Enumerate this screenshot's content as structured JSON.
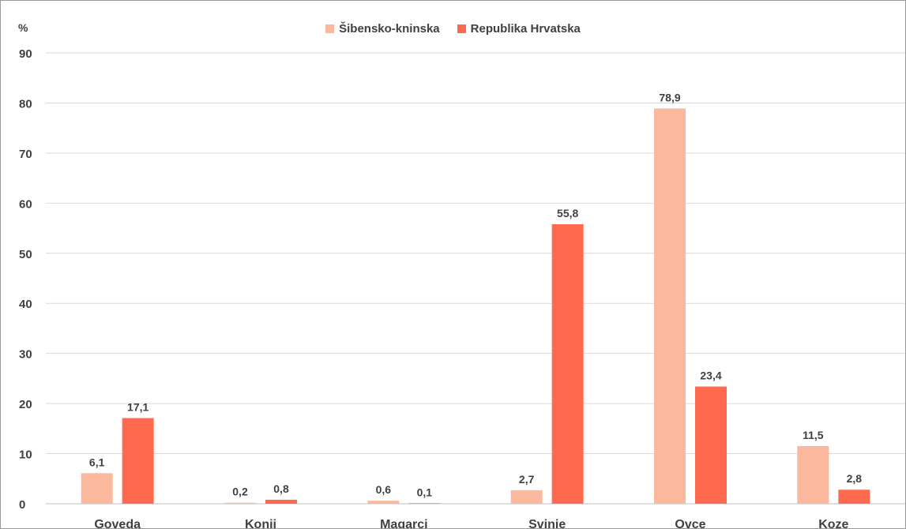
{
  "chart_data": {
    "type": "bar",
    "unit_label": "%",
    "categories": [
      "Goveda",
      "Konji",
      "Magarci",
      "Svinje",
      "Ovce",
      "Koze"
    ],
    "series": [
      {
        "name": "Šibensko-kninska",
        "color": "#FBB89D",
        "values": [
          6.1,
          0.2,
          0.6,
          2.7,
          78.9,
          11.5
        ],
        "labels": [
          "6,1",
          "0,2",
          "0,6",
          "2,7",
          "78,9",
          "11,5"
        ]
      },
      {
        "name": "Republika Hrvatska",
        "color": "#FF6A4E",
        "values": [
          17.1,
          0.8,
          0.1,
          55.8,
          23.4,
          2.8
        ],
        "labels": [
          "17,1",
          "0,8",
          "0,1",
          "55,8",
          "23,4",
          "2,8"
        ]
      }
    ],
    "yticks": [
      "0",
      "10",
      "20",
      "30",
      "40",
      "50",
      "60",
      "70",
      "80",
      "90"
    ],
    "ylim": [
      0,
      90
    ],
    "grid": true,
    "legend_position": "top-center"
  }
}
